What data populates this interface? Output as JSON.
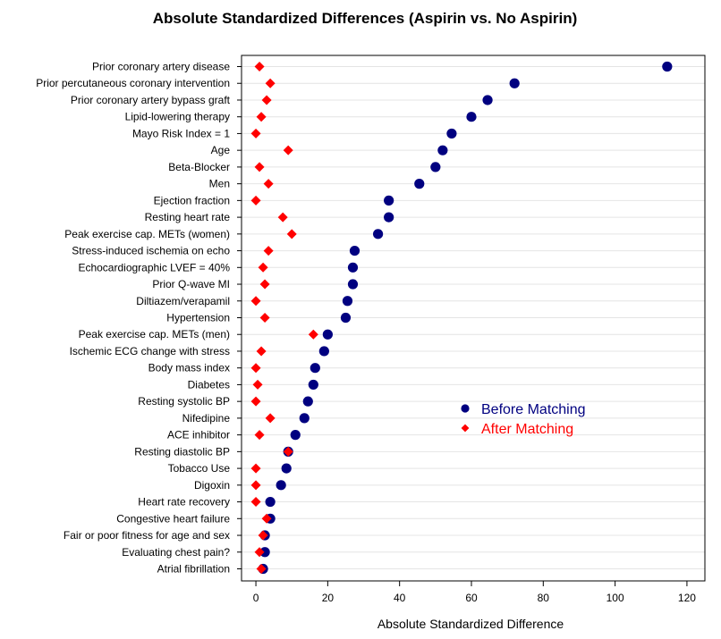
{
  "chart_data": {
    "type": "scatter",
    "title": "Absolute Standardized Differences (Aspirin vs. No Aspirin)",
    "xlabel": "Absolute Standardized Difference",
    "ylabel": "",
    "xlim": [
      -4,
      125
    ],
    "xticks": [
      0,
      20,
      40,
      60,
      80,
      100,
      120
    ],
    "grid": "horizontal",
    "legend_position": "center-right",
    "categories": [
      "Prior coronary artery disease",
      "Prior percutaneous coronary intervention",
      "Prior coronary artery bypass graft",
      "Lipid-lowering therapy",
      "Mayo Risk Index = 1",
      "Age",
      "Beta-Blocker",
      "Men",
      "Ejection fraction",
      "Resting heart rate",
      "Peak exercise cap. METs (women)",
      "Stress-induced ischemia on echo",
      "Echocardiographic LVEF = 40%",
      "Prior Q-wave MI",
      "Diltiazem/verapamil",
      "Hypertension",
      "Peak exercise cap. METs (men)",
      "Ischemic ECG change with stress",
      "Body mass index",
      "Diabetes",
      "Resting systolic BP",
      "Nifedipine",
      "ACE inhibitor",
      "Resting diastolic BP",
      "Tobacco Use",
      "Digoxin",
      "Heart rate recovery",
      "Congestive heart failure",
      "Fair or poor fitness for age and sex",
      "Evaluating chest pain?",
      "Atrial fibrillation"
    ],
    "series": [
      {
        "name": "Before Matching",
        "color": "#000080",
        "marker": "circle",
        "values": [
          114.5,
          72,
          64.5,
          60,
          54.5,
          52,
          50,
          45.5,
          37,
          37,
          34,
          27.5,
          27,
          27,
          25.5,
          25,
          20,
          19,
          16.5,
          16,
          14.5,
          13.5,
          11,
          9,
          8.5,
          7,
          4,
          4,
          2.5,
          2.5,
          2
        ]
      },
      {
        "name": "After Matching",
        "color": "#ff0000",
        "marker": "diamond",
        "values": [
          1,
          4,
          3,
          1.5,
          0,
          9,
          1,
          3.5,
          0,
          7.5,
          10,
          3.5,
          2,
          2.5,
          0,
          2.5,
          16,
          1.5,
          0,
          0.5,
          0,
          4,
          1,
          9,
          0,
          0,
          0,
          3,
          2,
          1,
          1.5
        ]
      }
    ]
  }
}
